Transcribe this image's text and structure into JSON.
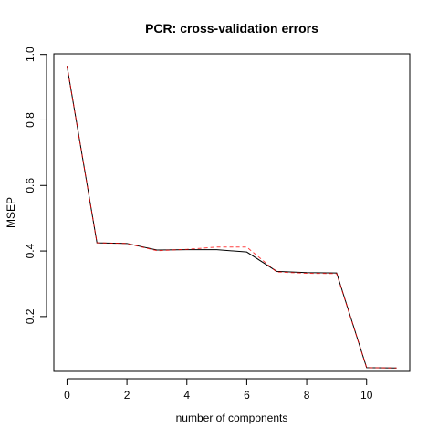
{
  "chart_data": {
    "type": "line",
    "title": "PCR: cross-validation errors",
    "xlabel": "number of components",
    "ylabel": "MSEP",
    "xlim": [
      -0.44,
      11.44
    ],
    "ylim": [
      0.0325,
      1.0019
    ],
    "x_ticks": [
      0,
      2,
      4,
      6,
      8,
      10
    ],
    "y_ticks": [
      0.2,
      0.4,
      0.6,
      0.8,
      1.0
    ],
    "grid": false,
    "legend": "none",
    "x": [
      0,
      1,
      2,
      3,
      4,
      5,
      6,
      7,
      8,
      9,
      10,
      11
    ],
    "series": [
      {
        "style": "solid",
        "color": "#000000",
        "values": [
          0.965,
          0.425,
          0.423,
          0.403,
          0.404,
          0.404,
          0.397,
          0.338,
          0.334,
          0.333,
          0.044,
          0.043
        ]
      },
      {
        "style": "dashed",
        "color": "#ff0000",
        "values": [
          0.965,
          0.425,
          0.423,
          0.401,
          0.405,
          0.412,
          0.412,
          0.336,
          0.332,
          0.331,
          0.044,
          0.043
        ]
      }
    ]
  }
}
